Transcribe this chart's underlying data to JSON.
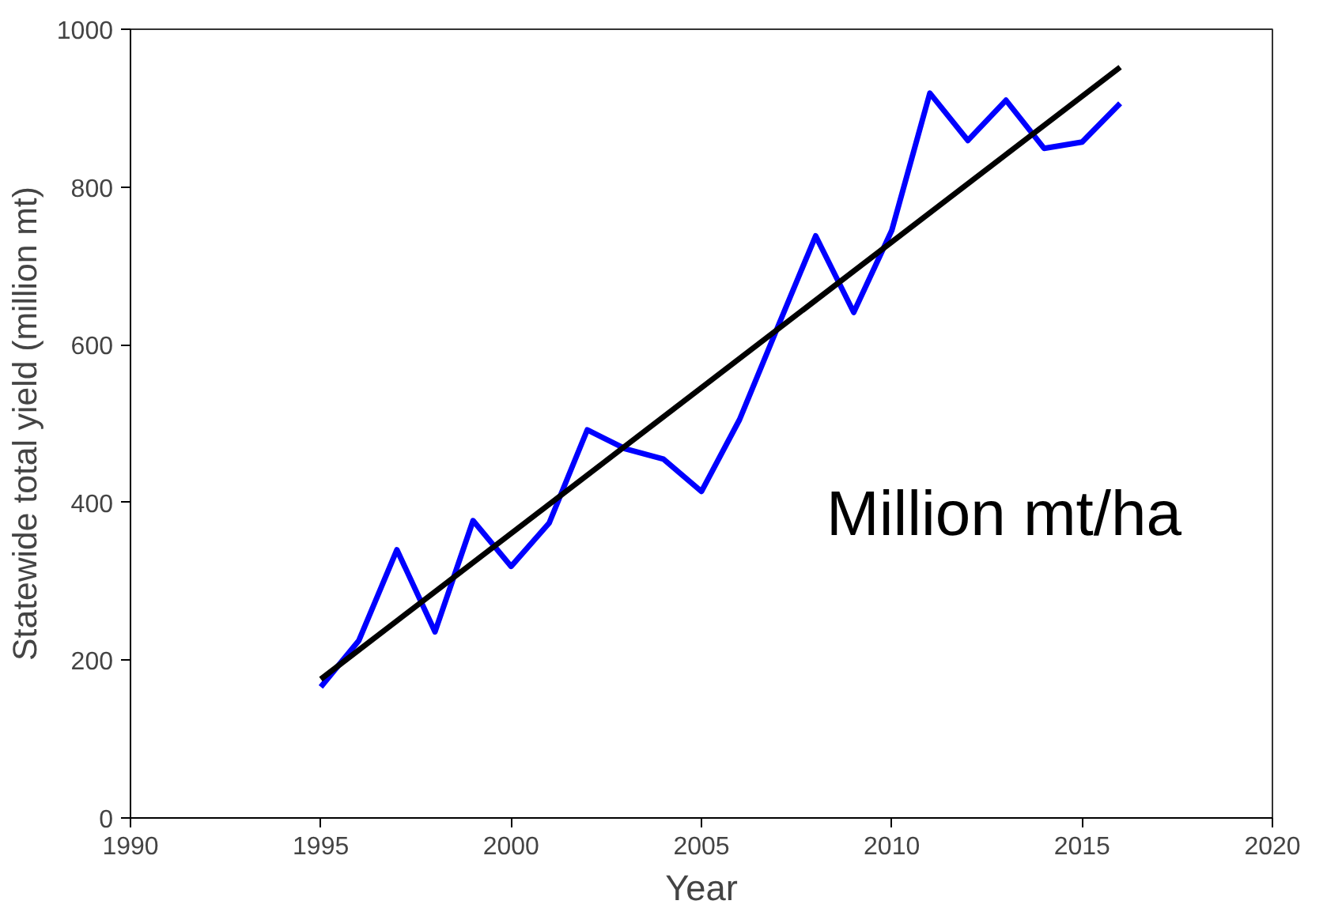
{
  "chart_data": {
    "type": "line",
    "xlabel": "Year",
    "ylabel": "Statewide total yield (million mt)",
    "xlim": [
      1990,
      2020
    ],
    "xticks": [
      1990,
      1995,
      2000,
      2005,
      2010,
      2015,
      2020
    ],
    "ylim": [
      0,
      1000
    ],
    "yticks": [
      0,
      200,
      400,
      600,
      800,
      1000
    ],
    "grid": false,
    "marker": "none",
    "series": [
      {
        "color": "#0000ff",
        "x": [
          1995,
          1996,
          1997,
          1998,
          1999,
          2000,
          2001,
          2002,
          2003,
          2004,
          2005,
          2006,
          2007,
          2008,
          2009,
          2010,
          2011,
          2012,
          2013,
          2014,
          2015,
          2016
        ],
        "values": [
          166,
          225,
          340,
          236,
          377,
          319,
          374,
          492,
          468,
          455,
          414,
          505,
          622,
          738,
          641,
          745,
          919,
          859,
          910,
          849,
          857,
          906
        ]
      },
      {
        "color": "#000000",
        "x": [
          1995,
          2016
        ],
        "values": [
          176,
          952
        ]
      }
    ],
    "annotations": [
      "Million mt/ha"
    ]
  }
}
